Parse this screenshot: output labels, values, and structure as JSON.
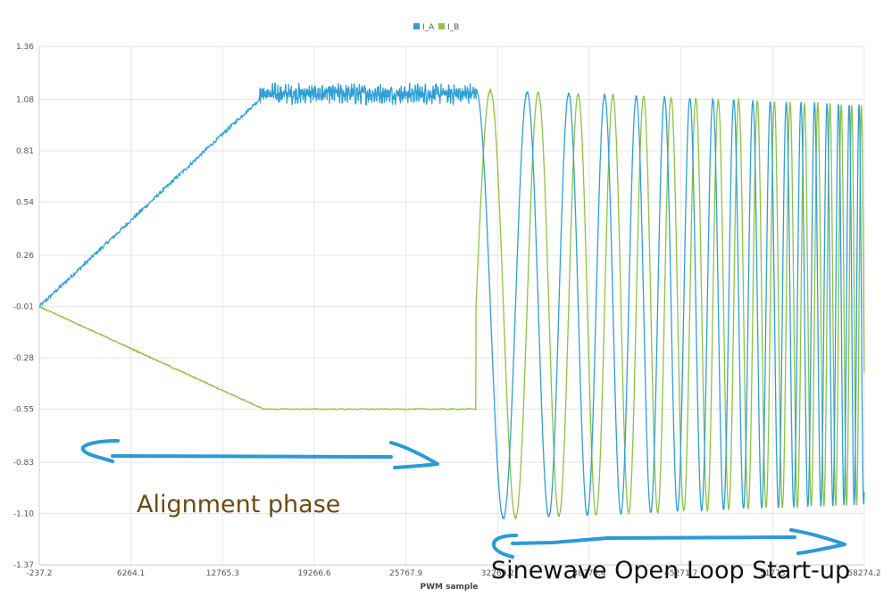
{
  "chart_data": {
    "type": "line",
    "xlabel": "PWM sample",
    "ylabel": "",
    "xlim": [
      -237.2,
      58774.2
    ],
    "ylim": [
      -1.37,
      1.36
    ],
    "x_ticks": [
      "-237.2",
      "6264.1",
      "12765.3",
      "19266.6",
      "25767.9",
      "32269.2",
      "38770.4",
      "45271.7",
      "51773",
      "58274.2"
    ],
    "y_ticks": [
      "1.36",
      "1.08",
      "0.81",
      "0.54",
      "0.26",
      "-0.01",
      "-0.28",
      "-0.55",
      "-0.83",
      "-1.10",
      "-1.37"
    ],
    "grid": true,
    "legend_position": "top-center",
    "series": [
      {
        "name": "I_A",
        "color": "#2f9fd8",
        "segments": [
          {
            "phase": "ramp",
            "x": [
              -237.2,
              15500
            ],
            "y": [
              -0.01,
              1.08
            ]
          },
          {
            "phase": "alignment-hold",
            "x": [
              15500,
              31000
            ],
            "y_mean": 1.11,
            "ripple": 0.04
          },
          {
            "phase": "open-loop-sine",
            "x": [
              31000,
              58774.2
            ],
            "amplitude_start": 1.13,
            "amplitude_end": 1.05,
            "initial_period": 4500,
            "final_period": 650
          }
        ]
      },
      {
        "name": "I_B",
        "color": "#8cc43f",
        "segments": [
          {
            "phase": "ramp",
            "x": [
              -237.2,
              15800
            ],
            "y": [
              -0.01,
              -0.55
            ]
          },
          {
            "phase": "alignment-hold",
            "x": [
              15800,
              31000
            ],
            "y": [
              -0.55,
              -0.55
            ]
          },
          {
            "phase": "open-loop-sine",
            "x": [
              31000,
              58774.2
            ],
            "amplitude_start": 1.13,
            "amplitude_end": 1.05,
            "phase_lag_deg": 90
          }
        ]
      }
    ],
    "annotations": [
      {
        "text": "Alignment phase",
        "color": "#6b4b12"
      },
      {
        "text": "Sinewave Open Loop Start-up",
        "color": "#111111"
      }
    ],
    "arrow_color": "#2a9ad8"
  }
}
